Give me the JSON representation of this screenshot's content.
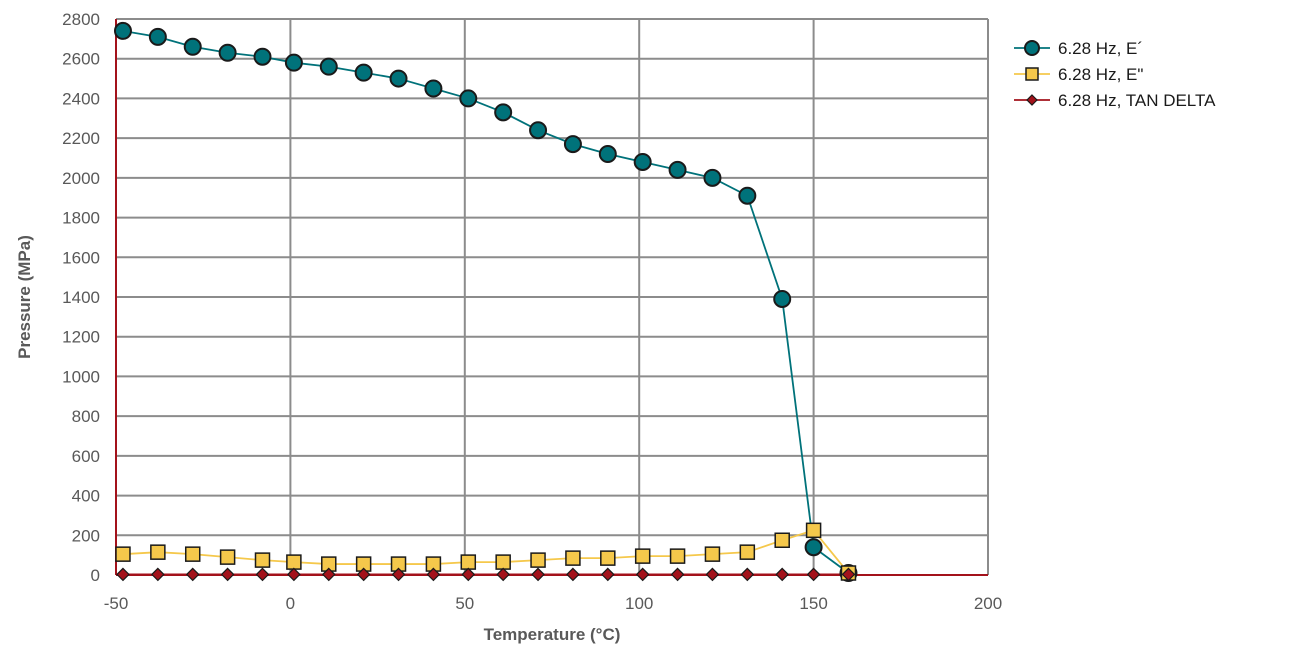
{
  "chart_data": {
    "type": "line",
    "title": "",
    "xlabel": "Temperature (°C)",
    "ylabel": "Pressure (MPa)",
    "xlim": [
      -50,
      200
    ],
    "ylim": [
      0,
      2800
    ],
    "x_ticks": [
      -50,
      0,
      50,
      100,
      150,
      200
    ],
    "y_ticks": [
      0,
      200,
      400,
      600,
      800,
      1000,
      1200,
      1400,
      1600,
      1800,
      2000,
      2200,
      2400,
      2600,
      2800
    ],
    "grid": true,
    "legend": "right",
    "series": [
      {
        "name": "6.28 Hz, E´",
        "marker": "circle",
        "color": "#00727a",
        "x": [
          -48,
          -38,
          -28,
          -18,
          -8,
          1,
          11,
          21,
          31,
          41,
          51,
          61,
          71,
          81,
          91,
          101,
          111,
          121,
          131,
          141,
          150,
          160
        ],
        "y": [
          2740,
          2710,
          2660,
          2630,
          2610,
          2580,
          2560,
          2530,
          2500,
          2450,
          2400,
          2330,
          2240,
          2170,
          2120,
          2080,
          2040,
          2000,
          1910,
          1390,
          140,
          10
        ]
      },
      {
        "name": "6.28 Hz, E\"",
        "marker": "square",
        "color": "#f5c84b",
        "x": [
          -48,
          -38,
          -28,
          -18,
          -8,
          1,
          11,
          21,
          31,
          41,
          51,
          61,
          71,
          81,
          91,
          101,
          111,
          121,
          131,
          141,
          150,
          160
        ],
        "y": [
          105,
          115,
          105,
          90,
          75,
          65,
          55,
          55,
          55,
          55,
          65,
          65,
          75,
          85,
          85,
          95,
          95,
          105,
          115,
          175,
          225,
          10
        ]
      },
      {
        "name": "6.28 Hz, TAN DELTA",
        "marker": "diamond",
        "color": "#a3121b",
        "x": [
          -48,
          -38,
          -28,
          -18,
          -8,
          1,
          11,
          21,
          31,
          41,
          51,
          61,
          71,
          81,
          91,
          101,
          111,
          121,
          131,
          141,
          150,
          160
        ],
        "y": [
          3,
          3,
          3,
          3,
          3,
          3,
          3,
          3,
          3,
          3,
          3,
          3,
          3,
          3,
          3,
          3,
          3,
          3,
          3,
          3,
          3,
          3
        ]
      }
    ]
  }
}
